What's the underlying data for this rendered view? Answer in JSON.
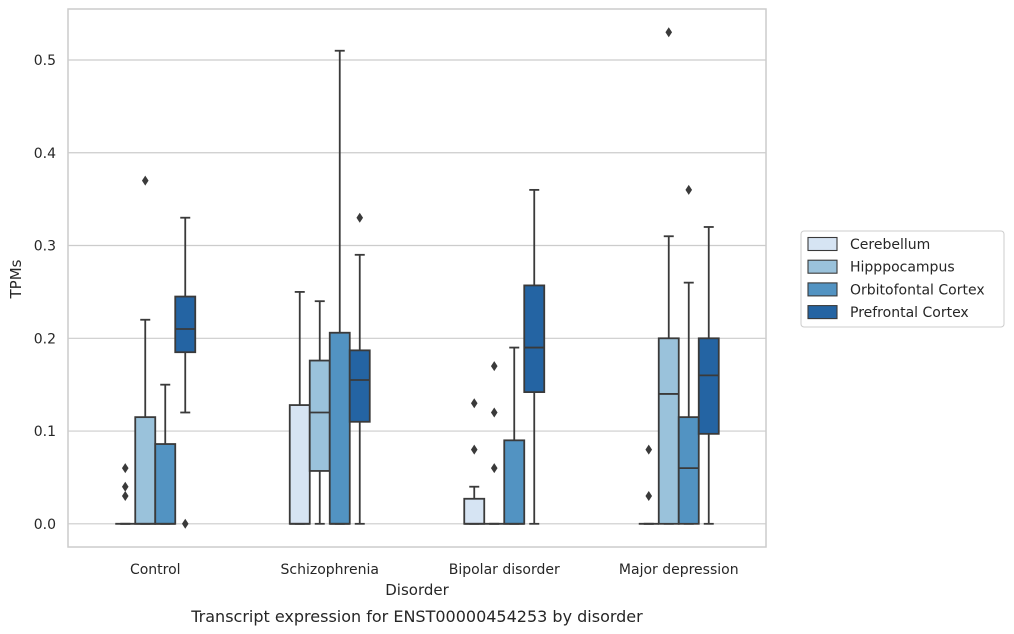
{
  "caption": "Transcript expression for ENST00000454253 by disorder",
  "chart_data": {
    "type": "box",
    "xlabel": "Disorder",
    "ylabel": "TPMs",
    "categories": [
      "Control",
      "Schizophrenia",
      "Bipolar disorder",
      "Major depression"
    ],
    "ylim": [
      -0.025,
      0.555
    ],
    "yticks": [
      0.0,
      0.1,
      0.2,
      0.3,
      0.4,
      0.5
    ],
    "ytick_labels": [
      "0.0",
      "0.1",
      "0.2",
      "0.3",
      "0.4",
      "0.5"
    ],
    "grid": "horizontal",
    "legend_position": "right",
    "series": [
      {
        "name": "Cerebellum",
        "color": "#d6e4f3",
        "boxes": [
          {
            "whislo": 0,
            "q1": 0,
            "med": 0,
            "q3": 0,
            "whishi": 0,
            "fliers": [
              0.03,
              0.04,
              0.06
            ]
          },
          {
            "whislo": 0,
            "q1": 0,
            "med": 0,
            "q3": 0.128,
            "whishi": 0.25,
            "fliers": []
          },
          {
            "whislo": 0,
            "q1": 0,
            "med": 0,
            "q3": 0.027,
            "whishi": 0.04,
            "fliers": [
              0.08,
              0.13
            ]
          },
          {
            "whislo": 0,
            "q1": 0,
            "med": 0,
            "q3": 0,
            "whishi": 0,
            "fliers": [
              0.03,
              0.08
            ]
          }
        ]
      },
      {
        "name": "Hipppocampus",
        "color": "#9ac2db",
        "boxes": [
          {
            "whislo": 0,
            "q1": 0,
            "med": 0,
            "q3": 0.115,
            "whishi": 0.22,
            "fliers": [
              0.37
            ]
          },
          {
            "whislo": 0,
            "q1": 0.057,
            "med": 0.12,
            "q3": 0.176,
            "whishi": 0.24,
            "fliers": []
          },
          {
            "whislo": 0,
            "q1": 0,
            "med": 0,
            "q3": 0,
            "whishi": 0,
            "fliers": [
              0.06,
              0.12,
              0.17
            ]
          },
          {
            "whislo": 0,
            "q1": 0,
            "med": 0.14,
            "q3": 0.2,
            "whishi": 0.31,
            "fliers": [
              0.53
            ]
          }
        ]
      },
      {
        "name": "Orbitofontal Cortex",
        "color": "#5293c2",
        "boxes": [
          {
            "whislo": 0,
            "q1": 0,
            "med": 0,
            "q3": 0.086,
            "whishi": 0.15,
            "fliers": []
          },
          {
            "whislo": 0,
            "q1": 0,
            "med": 0,
            "q3": 0.206,
            "whishi": 0.51,
            "fliers": []
          },
          {
            "whislo": 0,
            "q1": 0,
            "med": 0,
            "q3": 0.09,
            "whishi": 0.19,
            "fliers": []
          },
          {
            "whislo": 0,
            "q1": 0,
            "med": 0.06,
            "q3": 0.115,
            "whishi": 0.26,
            "fliers": [
              0.36
            ]
          }
        ]
      },
      {
        "name": "Prefrontal Cortex",
        "color": "#2464a3",
        "boxes": [
          {
            "whislo": 0.12,
            "q1": 0.185,
            "med": 0.21,
            "q3": 0.245,
            "whishi": 0.33,
            "fliers": [
              0
            ]
          },
          {
            "whislo": 0,
            "q1": 0.11,
            "med": 0.155,
            "q3": 0.187,
            "whishi": 0.29,
            "fliers": [
              0.33
            ]
          },
          {
            "whislo": 0,
            "q1": 0.142,
            "med": 0.19,
            "q3": 0.257,
            "whishi": 0.36,
            "fliers": []
          },
          {
            "whislo": 0,
            "q1": 0.097,
            "med": 0.16,
            "q3": 0.2,
            "whishi": 0.32,
            "fliers": []
          }
        ]
      }
    ]
  }
}
